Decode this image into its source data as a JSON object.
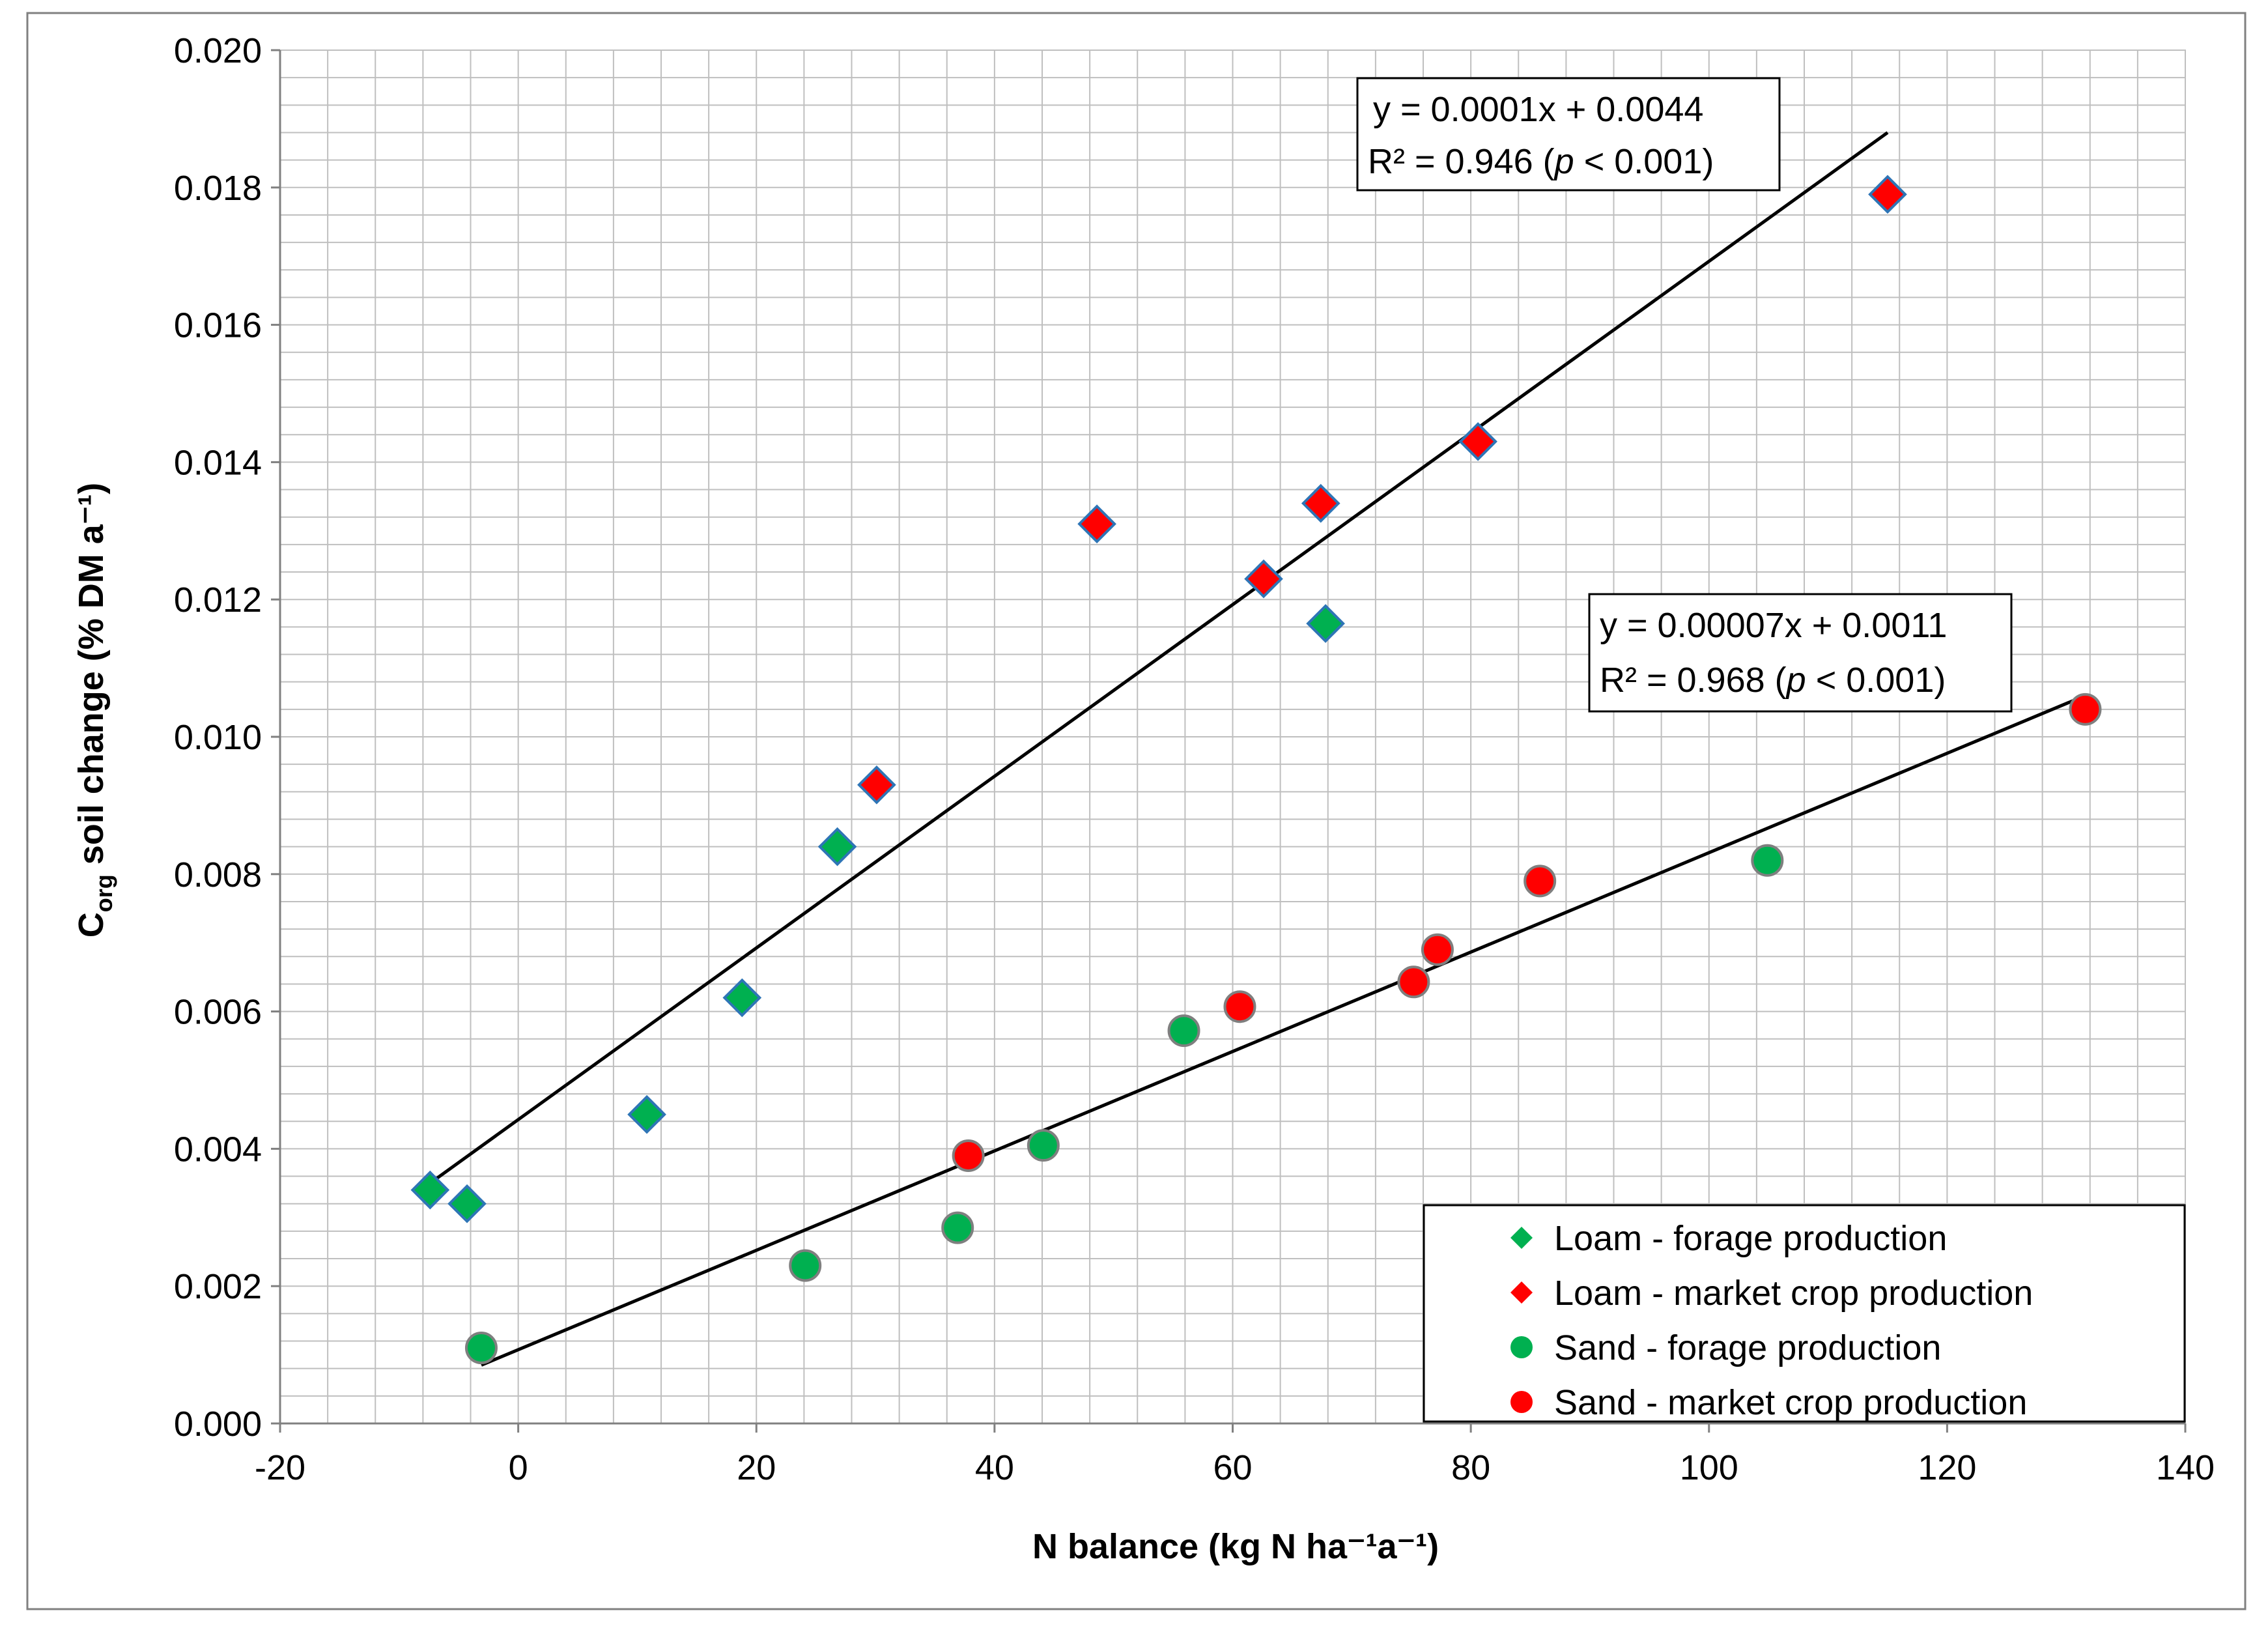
{
  "chart_data": {
    "type": "scatter",
    "title": "",
    "xlabel": "N balance (kg N ha⁻¹a⁻¹)",
    "ylabel_parts": {
      "main": "C",
      "subscript": "org",
      "rest": " soil change (% DM a⁻¹)"
    },
    "xlim": [
      -20,
      140
    ],
    "ylim": [
      0,
      0.02
    ],
    "x_major_step": 20,
    "x_minor_step": 4,
    "y_major_step": 0.002,
    "y_minor_step": 0.0004,
    "x_tick_labels": [
      "-20",
      "0",
      "20",
      "40",
      "60",
      "80",
      "100",
      "120",
      "140"
    ],
    "y_tick_labels": [
      "0.000",
      "0.002",
      "0.004",
      "0.006",
      "0.008",
      "0.010",
      "0.012",
      "0.014",
      "0.016",
      "0.018",
      "0.020"
    ],
    "grid": true,
    "legend_position": "bottom-right",
    "series": [
      {
        "name": "Loam - forage production",
        "marker": "diamond",
        "color": "#00B050",
        "edge_color": "#2E75B6",
        "points": [
          [
            -7.4,
            0.0034
          ],
          [
            -4.3,
            0.0032
          ],
          [
            10.8,
            0.0045
          ],
          [
            18.8,
            0.0062
          ],
          [
            26.8,
            0.0084
          ],
          [
            67.8,
            0.01165
          ]
        ]
      },
      {
        "name": "Loam - market crop production",
        "marker": "diamond",
        "color": "#FF0000",
        "edge_color": "#2E75B6",
        "points": [
          [
            30.1,
            0.0093
          ],
          [
            48.6,
            0.0131
          ],
          [
            62.6,
            0.0123
          ],
          [
            67.4,
            0.0134
          ],
          [
            80.6,
            0.0143
          ],
          [
            115,
            0.0179
          ]
        ]
      },
      {
        "name": "Sand - forage production",
        "marker": "circle",
        "color": "#00B050",
        "edge_color": "#7F7F7F",
        "points": [
          [
            -3.1,
            0.0011
          ],
          [
            24.1,
            0.0023
          ],
          [
            36.9,
            0.00285
          ],
          [
            44.1,
            0.00405
          ],
          [
            55.9,
            0.00572
          ],
          [
            104.9,
            0.0082
          ]
        ]
      },
      {
        "name": "Sand - market crop production",
        "marker": "circle",
        "color": "#FF0000",
        "edge_color": "#7F7F7F",
        "points": [
          [
            37.8,
            0.0039
          ],
          [
            60.6,
            0.00607
          ],
          [
            75.2,
            0.00643
          ],
          [
            77.2,
            0.0069
          ],
          [
            85.8,
            0.0079
          ],
          [
            131.6,
            0.0104
          ]
        ]
      }
    ],
    "trendlines": [
      {
        "name": "loam-trendline",
        "x_range": [
          -7.4,
          115
        ],
        "y_range": [
          0.0035,
          0.0188
        ],
        "equation": "y = 0.0001x + 0.0044",
        "r2_label": "R² = 0.946 (",
        "p_label": "p",
        "p_rest": " < 0.001)"
      },
      {
        "name": "sand-trendline",
        "x_range": [
          -3.1,
          131.6
        ],
        "y_range": [
          0.00085,
          0.0106
        ],
        "equation": "y = 0.00007x + 0.0011",
        "r2_label": "R² = 0.968 (",
        "p_label": "p",
        "p_rest": " < 0.001)"
      }
    ]
  },
  "colors": {
    "grid": "#BFBFBF",
    "axis": "#808080",
    "outer_border": "#808080",
    "trendline": "#000000",
    "text": "#000000"
  }
}
